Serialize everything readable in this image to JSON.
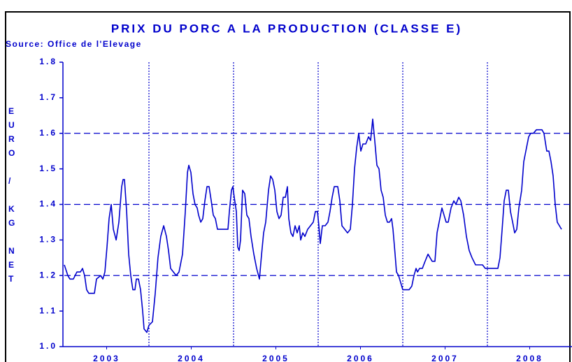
{
  "chart_data": {
    "type": "line",
    "title": "PRIX DU PORC A LA PRODUCTION (CLASSE E)",
    "subtitle": "Source: Office de l'Elevage",
    "ylabel": "EURO / KG NET",
    "color": "#0000cc",
    "xlim": [
      2003,
      2009
    ],
    "ylim": [
      1.0,
      1.8
    ],
    "xticks": [
      {
        "value": 2003.5,
        "label": "2003"
      },
      {
        "value": 2004.5,
        "label": "2004"
      },
      {
        "value": 2005.5,
        "label": "2005"
      },
      {
        "value": 2006.5,
        "label": "2006"
      },
      {
        "value": 2007.5,
        "label": "2007"
      },
      {
        "value": 2008.5,
        "label": "2008"
      }
    ],
    "yticks": [
      {
        "value": 1,
        "label": "1.0"
      },
      1.1,
      1.2,
      1.3,
      1.4,
      1.5,
      1.6,
      1.7,
      1.8
    ],
    "xgrid": [
      2004,
      2005,
      2006,
      2007,
      2008
    ],
    "ygrid": [
      1.2,
      1.4,
      1.6
    ],
    "x": [
      2003.0,
      2003.041,
      2003.066,
      2003.107,
      2003.149,
      2003.19,
      2003.215,
      2003.24,
      2003.264,
      2003.289,
      2003.355,
      2003.38,
      2003.43,
      2003.455,
      2003.479,
      2003.504,
      2003.529,
      2003.554,
      2003.579,
      2003.612,
      2003.645,
      2003.678,
      2003.694,
      2003.711,
      2003.736,
      2003.76,
      2003.785,
      2003.81,
      2003.835,
      2003.851,
      2003.876,
      2003.901,
      2003.926,
      2003.942,
      2003.975,
      2004.0,
      2004.041,
      2004.074,
      2004.107,
      2004.14,
      2004.174,
      2004.207,
      2004.231,
      2004.256,
      2004.289,
      2004.322,
      2004.355,
      2004.397,
      2004.43,
      2004.455,
      2004.471,
      2004.496,
      2004.521,
      2004.545,
      2004.57,
      2004.587,
      2004.612,
      2004.636,
      2004.661,
      2004.686,
      2004.711,
      2004.736,
      2004.76,
      2004.785,
      2004.81,
      2004.884,
      2004.934,
      2004.95,
      2004.975,
      2004.992,
      2005.008,
      2005.033,
      2005.05,
      2005.066,
      2005.083,
      2005.107,
      2005.132,
      2005.157,
      2005.182,
      2005.207,
      2005.24,
      2005.273,
      2005.306,
      2005.331,
      2005.355,
      2005.38,
      2005.413,
      2005.438,
      2005.463,
      2005.488,
      2005.512,
      2005.537,
      2005.562,
      2005.587,
      2005.612,
      2005.636,
      2005.653,
      2005.678,
      2005.702,
      2005.727,
      2005.752,
      2005.777,
      2005.793,
      2005.818,
      2005.843,
      2005.876,
      2005.909,
      2005.942,
      2005.967,
      2005.992,
      2006.008,
      2006.025,
      2006.05,
      2006.083,
      2006.116,
      2006.14,
      2006.165,
      2006.19,
      2006.231,
      2006.256,
      2006.281,
      2006.314,
      2006.347,
      2006.38,
      2006.405,
      2006.43,
      2006.455,
      2006.479,
      2006.504,
      2006.529,
      2006.562,
      2006.595,
      2006.62,
      2006.645,
      2006.669,
      2006.694,
      2006.719,
      2006.744,
      2006.769,
      2006.793,
      2006.818,
      2006.843,
      2006.868,
      2006.884,
      2006.909,
      2006.926,
      2006.95,
      2006.975,
      2007.0,
      2007.074,
      2007.107,
      2007.132,
      2007.157,
      2007.174,
      2007.198,
      2007.231,
      2007.264,
      2007.298,
      2007.322,
      2007.347,
      2007.38,
      2007.405,
      2007.438,
      2007.463,
      2007.488,
      2007.512,
      2007.537,
      2007.57,
      2007.603,
      2007.628,
      2007.661,
      2007.686,
      2007.719,
      2007.752,
      2007.785,
      2007.818,
      2007.86,
      2007.942,
      2007.975,
      2008.124,
      2008.149,
      2008.174,
      2008.198,
      2008.223,
      2008.248,
      2008.273,
      2008.298,
      2008.322,
      2008.347,
      2008.372,
      2008.405,
      2008.43,
      2008.463,
      2008.488,
      2008.512,
      2008.545,
      2008.579,
      2008.645,
      2008.669,
      2008.702,
      2008.727,
      2008.752,
      2008.777,
      2008.802,
      2008.826,
      2008.851,
      2008.876
    ],
    "values": [
      1.23,
      1.2,
      1.19,
      1.19,
      1.21,
      1.21,
      1.22,
      1.2,
      1.16,
      1.15,
      1.15,
      1.19,
      1.2,
      1.19,
      1.21,
      1.28,
      1.36,
      1.4,
      1.33,
      1.3,
      1.35,
      1.45,
      1.47,
      1.47,
      1.38,
      1.26,
      1.2,
      1.16,
      1.16,
      1.19,
      1.19,
      1.16,
      1.1,
      1.05,
      1.04,
      1.06,
      1.07,
      1.15,
      1.25,
      1.31,
      1.34,
      1.31,
      1.27,
      1.22,
      1.21,
      1.2,
      1.21,
      1.26,
      1.38,
      1.49,
      1.51,
      1.49,
      1.43,
      1.4,
      1.39,
      1.37,
      1.35,
      1.36,
      1.41,
      1.45,
      1.45,
      1.41,
      1.37,
      1.36,
      1.33,
      1.33,
      1.33,
      1.38,
      1.44,
      1.45,
      1.42,
      1.38,
      1.28,
      1.27,
      1.3,
      1.44,
      1.43,
      1.37,
      1.36,
      1.31,
      1.26,
      1.22,
      1.19,
      1.26,
      1.32,
      1.35,
      1.44,
      1.48,
      1.47,
      1.44,
      1.38,
      1.36,
      1.37,
      1.42,
      1.42,
      1.45,
      1.36,
      1.32,
      1.31,
      1.34,
      1.32,
      1.34,
      1.3,
      1.32,
      1.31,
      1.33,
      1.34,
      1.35,
      1.38,
      1.38,
      1.34,
      1.29,
      1.34,
      1.34,
      1.35,
      1.38,
      1.42,
      1.45,
      1.45,
      1.41,
      1.34,
      1.33,
      1.32,
      1.33,
      1.4,
      1.5,
      1.56,
      1.6,
      1.55,
      1.57,
      1.57,
      1.59,
      1.58,
      1.64,
      1.58,
      1.51,
      1.5,
      1.44,
      1.42,
      1.37,
      1.35,
      1.35,
      1.36,
      1.33,
      1.26,
      1.21,
      1.2,
      1.18,
      1.16,
      1.16,
      1.17,
      1.2,
      1.22,
      1.21,
      1.22,
      1.22,
      1.24,
      1.26,
      1.25,
      1.24,
      1.24,
      1.32,
      1.36,
      1.39,
      1.37,
      1.35,
      1.35,
      1.39,
      1.41,
      1.4,
      1.42,
      1.41,
      1.37,
      1.31,
      1.27,
      1.25,
      1.23,
      1.23,
      1.22,
      1.22,
      1.25,
      1.33,
      1.41,
      1.44,
      1.44,
      1.38,
      1.35,
      1.32,
      1.33,
      1.39,
      1.44,
      1.52,
      1.56,
      1.59,
      1.6,
      1.6,
      1.61,
      1.61,
      1.6,
      1.55,
      1.55,
      1.52,
      1.48,
      1.4,
      1.35,
      1.34,
      1.33
    ]
  }
}
